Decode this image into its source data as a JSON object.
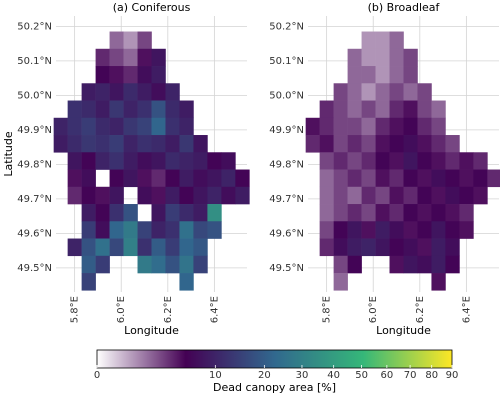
{
  "chart_data": [
    {
      "type": "raster",
      "title": "(a) Coniferous",
      "xlabel": "Longitude",
      "ylabel": "Latitude",
      "xlim": [
        5.72,
        6.54
      ],
      "ylim": [
        49.43,
        50.23
      ],
      "xticks": [
        {
          "value": 5.8,
          "label": "5.8°E"
        },
        {
          "value": 6.0,
          "label": "6.0°E"
        },
        {
          "value": 6.2,
          "label": "6.2°E"
        },
        {
          "value": 6.4,
          "label": "6.4°E"
        }
      ],
      "yticks": [
        {
          "value": 49.5,
          "label": "49.5°N"
        },
        {
          "value": 49.6,
          "label": "49.6°N"
        },
        {
          "value": 49.7,
          "label": "49.7°N"
        },
        {
          "value": 49.8,
          "label": "49.8°N"
        },
        {
          "value": 49.9,
          "label": "49.9°N"
        },
        {
          "value": 50.0,
          "label": "50.0°N"
        },
        {
          "value": 50.1,
          "label": "50.1°N"
        },
        {
          "value": 50.2,
          "label": "50.2°N"
        }
      ],
      "grid": true,
      "x": [
        5.74,
        5.8,
        5.86,
        5.92,
        5.98,
        6.04,
        6.1,
        6.16,
        6.22,
        6.28,
        6.34,
        6.4,
        6.46,
        6.52
      ],
      "y": [
        50.16,
        50.11,
        50.06,
        50.01,
        49.96,
        49.91,
        49.86,
        49.81,
        49.76,
        49.71,
        49.66,
        49.61,
        49.56,
        49.51,
        49.46
      ],
      "values": [
        [
          null,
          null,
          null,
          null,
          2,
          1,
          3,
          null,
          null,
          null,
          null,
          null,
          null,
          null
        ],
        [
          null,
          null,
          null,
          4,
          3,
          2,
          5,
          8,
          null,
          null,
          null,
          null,
          null,
          null
        ],
        [
          null,
          null,
          null,
          6,
          5,
          4,
          7,
          9,
          null,
          null,
          null,
          null,
          null,
          null
        ],
        [
          null,
          null,
          9,
          10,
          8,
          11,
          9,
          7,
          10,
          null,
          null,
          null,
          null,
          null
        ],
        [
          null,
          12,
          11,
          9,
          13,
          10,
          12,
          18,
          11,
          9,
          null,
          null,
          null,
          null
        ],
        [
          10,
          12,
          14,
          11,
          10,
          13,
          15,
          22,
          12,
          10,
          null,
          null,
          null,
          null
        ],
        [
          9,
          11,
          13,
          12,
          14,
          10,
          12,
          11,
          9,
          13,
          8,
          null,
          null,
          null
        ],
        [
          null,
          8,
          6,
          10,
          12,
          9,
          7,
          8,
          11,
          10,
          9,
          6,
          7,
          null
        ],
        [
          null,
          5,
          7,
          null,
          6,
          8,
          5,
          4,
          6,
          9,
          7,
          8,
          10,
          6
        ],
        [
          null,
          4,
          6,
          5,
          8,
          null,
          7,
          5,
          9,
          6,
          8,
          10,
          7,
          9
        ],
        [
          null,
          null,
          9,
          6,
          12,
          18,
          null,
          8,
          14,
          11,
          9,
          35,
          null,
          null
        ],
        [
          null,
          null,
          14,
          7,
          22,
          28,
          15,
          10,
          12,
          25,
          16,
          18,
          null,
          null
        ],
        [
          null,
          10,
          18,
          25,
          16,
          30,
          12,
          20,
          14,
          22,
          19,
          null,
          null,
          null
        ],
        [
          null,
          null,
          20,
          14,
          null,
          null,
          28,
          24,
          18,
          26,
          15,
          null,
          null,
          null
        ],
        [
          null,
          null,
          15,
          null,
          null,
          null,
          null,
          null,
          null,
          22,
          null,
          null,
          null,
          null
        ]
      ]
    },
    {
      "type": "raster",
      "title": "(b) Broadleaf",
      "xlabel": "Longitude",
      "ylabel": "Latitude",
      "xlim": [
        5.72,
        6.54
      ],
      "ylim": [
        49.43,
        50.23
      ],
      "xticks": [
        {
          "value": 5.8,
          "label": "5.8°E"
        },
        {
          "value": 6.0,
          "label": "6.0°E"
        },
        {
          "value": 6.2,
          "label": "6.2°E"
        },
        {
          "value": 6.4,
          "label": "6.4°E"
        }
      ],
      "yticks": [
        {
          "value": 49.5,
          "label": "49.5°N"
        },
        {
          "value": 49.6,
          "label": "49.6°N"
        },
        {
          "value": 49.7,
          "label": "49.7°N"
        },
        {
          "value": 49.8,
          "label": "49.8°N"
        },
        {
          "value": 49.9,
          "label": "49.9°N"
        },
        {
          "value": 50.0,
          "label": "50.0°N"
        },
        {
          "value": 50.1,
          "label": "50.1°N"
        },
        {
          "value": 50.2,
          "label": "50.2°N"
        }
      ],
      "grid": true,
      "x": [
        5.74,
        5.8,
        5.86,
        5.92,
        5.98,
        6.04,
        6.1,
        6.16,
        6.22,
        6.28,
        6.34,
        6.4,
        6.46,
        6.52
      ],
      "y": [
        50.16,
        50.11,
        50.06,
        50.01,
        49.96,
        49.91,
        49.86,
        49.81,
        49.76,
        49.71,
        49.66,
        49.61,
        49.56,
        49.51,
        49.46
      ],
      "values": [
        [
          null,
          null,
          null,
          null,
          1,
          1,
          2,
          null,
          null,
          null,
          null,
          null,
          null,
          null
        ],
        [
          null,
          null,
          null,
          2,
          1,
          1,
          2,
          3,
          null,
          null,
          null,
          null,
          null,
          null
        ],
        [
          null,
          null,
          null,
          2,
          2,
          1,
          2,
          3,
          null,
          null,
          null,
          null,
          null,
          null
        ],
        [
          null,
          null,
          3,
          2,
          1,
          2,
          3,
          2,
          3,
          null,
          null,
          null,
          null,
          null
        ],
        [
          null,
          4,
          3,
          2,
          3,
          2,
          4,
          5,
          3,
          2,
          null,
          null,
          null,
          null
        ],
        [
          5,
          4,
          3,
          3,
          2,
          4,
          5,
          6,
          4,
          3,
          null,
          null,
          null,
          null
        ],
        [
          4,
          5,
          3,
          4,
          3,
          5,
          6,
          7,
          5,
          4,
          3,
          null,
          null,
          null
        ],
        [
          null,
          3,
          4,
          3,
          4,
          6,
          5,
          8,
          6,
          5,
          4,
          5,
          4,
          null
        ],
        [
          null,
          2,
          3,
          4,
          3,
          5,
          4,
          6,
          5,
          7,
          6,
          5,
          6,
          4
        ],
        [
          null,
          2,
          3,
          2,
          4,
          3,
          5,
          4,
          6,
          5,
          7,
          6,
          5,
          null
        ],
        [
          null,
          2,
          3,
          4,
          3,
          5,
          4,
          6,
          5,
          6,
          5,
          4,
          null,
          null
        ],
        [
          null,
          3,
          6,
          8,
          5,
          9,
          7,
          5,
          6,
          8,
          6,
          5,
          null,
          null
        ],
        [
          null,
          4,
          7,
          9,
          10,
          8,
          6,
          7,
          5,
          9,
          7,
          null,
          null,
          null
        ],
        [
          null,
          null,
          3,
          6,
          null,
          null,
          5,
          8,
          7,
          9,
          6,
          null,
          null,
          null
        ],
        [
          null,
          null,
          2,
          null,
          null,
          null,
          null,
          null,
          null,
          5,
          null,
          null,
          null,
          null
        ]
      ]
    }
  ],
  "colorbar": {
    "label": "Dead canopy area [%]",
    "lim": [
      0,
      90
    ],
    "scale": "sqrt",
    "ticks": [
      0,
      10,
      20,
      30,
      40,
      50,
      60,
      70,
      80,
      90
    ],
    "colormap": [
      "#ffffff",
      "#440154",
      "#31688e",
      "#35b779",
      "#fde725"
    ]
  }
}
